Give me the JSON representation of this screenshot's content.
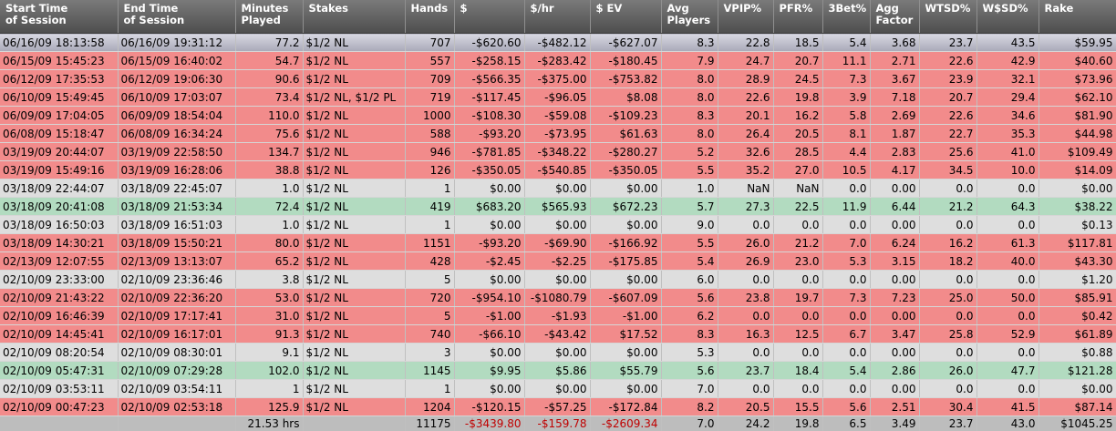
{
  "columns": [
    {
      "key": "start",
      "label": "Start Time\nof Session",
      "align": "left"
    },
    {
      "key": "end",
      "label": "End Time\nof Session",
      "align": "left"
    },
    {
      "key": "minutes",
      "label": "Minutes\nPlayed",
      "align": "right"
    },
    {
      "key": "stakes",
      "label": "Stakes",
      "align": "left"
    },
    {
      "key": "hands",
      "label": "Hands",
      "align": "right"
    },
    {
      "key": "dollars",
      "label": "$",
      "align": "right"
    },
    {
      "key": "per_hr",
      "label": "$/hr",
      "align": "right"
    },
    {
      "key": "ev",
      "label": "$ EV",
      "align": "right"
    },
    {
      "key": "avg_players",
      "label": "Avg\nPlayers",
      "align": "right"
    },
    {
      "key": "vpip",
      "label": "VPIP%",
      "align": "right"
    },
    {
      "key": "pfr",
      "label": "PFR%",
      "align": "right"
    },
    {
      "key": "threebet",
      "label": "3Bet%",
      "align": "right"
    },
    {
      "key": "agg",
      "label": "Agg\nFactor",
      "align": "right"
    },
    {
      "key": "wtsd",
      "label": "WTSD%",
      "align": "right"
    },
    {
      "key": "wsd",
      "label": "W$SD%",
      "align": "right"
    },
    {
      "key": "rake",
      "label": "Rake",
      "align": "right"
    }
  ],
  "row_colors": {
    "loss": "#f28b8b",
    "win": "#b2dbc0",
    "neutral": "#dedede"
  },
  "rows": [
    {
      "result": "selected",
      "cells": [
        "06/16/09 18:13:58",
        "06/16/09 19:31:12",
        "77.2",
        "$1/2 NL",
        "707",
        "-$620.60",
        "-$482.12",
        "-$627.07",
        "8.3",
        "22.8",
        "18.5",
        "5.4",
        "3.68",
        "23.7",
        "43.5",
        "$59.95"
      ]
    },
    {
      "result": "loss",
      "cells": [
        "06/15/09 15:45:23",
        "06/15/09 16:40:02",
        "54.7",
        "$1/2 NL",
        "557",
        "-$258.15",
        "-$283.42",
        "-$180.45",
        "7.9",
        "24.7",
        "20.7",
        "11.1",
        "2.71",
        "22.6",
        "42.9",
        "$40.60"
      ]
    },
    {
      "result": "loss",
      "cells": [
        "06/12/09 17:35:53",
        "06/12/09 19:06:30",
        "90.6",
        "$1/2 NL",
        "709",
        "-$566.35",
        "-$375.00",
        "-$753.82",
        "8.0",
        "28.9",
        "24.5",
        "7.3",
        "3.67",
        "23.9",
        "32.1",
        "$73.96"
      ]
    },
    {
      "result": "loss",
      "cells": [
        "06/10/09 15:49:45",
        "06/10/09 17:03:07",
        "73.4",
        "$1/2 NL, $1/2 PL",
        "719",
        "-$117.45",
        "-$96.05",
        "$8.08",
        "8.0",
        "22.6",
        "19.8",
        "3.9",
        "7.18",
        "20.7",
        "29.4",
        "$62.10"
      ]
    },
    {
      "result": "loss",
      "cells": [
        "06/09/09 17:04:05",
        "06/09/09 18:54:04",
        "110.0",
        "$1/2 NL",
        "1000",
        "-$108.30",
        "-$59.08",
        "-$109.23",
        "8.3",
        "20.1",
        "16.2",
        "5.8",
        "2.69",
        "22.6",
        "34.6",
        "$81.90"
      ]
    },
    {
      "result": "loss",
      "cells": [
        "06/08/09 15:18:47",
        "06/08/09 16:34:24",
        "75.6",
        "$1/2 NL",
        "588",
        "-$93.20",
        "-$73.95",
        "$61.63",
        "8.0",
        "26.4",
        "20.5",
        "8.1",
        "1.87",
        "22.7",
        "35.3",
        "$44.98"
      ]
    },
    {
      "result": "loss",
      "cells": [
        "03/19/09 20:44:07",
        "03/19/09 22:58:50",
        "134.7",
        "$1/2 NL",
        "946",
        "-$781.85",
        "-$348.22",
        "-$280.27",
        "5.2",
        "32.6",
        "28.5",
        "4.4",
        "2.83",
        "25.6",
        "41.0",
        "$109.49"
      ]
    },
    {
      "result": "loss",
      "cells": [
        "03/19/09 15:49:16",
        "03/19/09 16:28:06",
        "38.8",
        "$1/2 NL",
        "126",
        "-$350.05",
        "-$540.85",
        "-$350.05",
        "5.5",
        "35.2",
        "27.0",
        "10.5",
        "4.17",
        "34.5",
        "10.0",
        "$14.09"
      ]
    },
    {
      "result": "neutral",
      "cells": [
        "03/18/09 22:44:07",
        "03/18/09 22:45:07",
        "1.0",
        "$1/2 NL",
        "1",
        "$0.00",
        "$0.00",
        "$0.00",
        "1.0",
        "NaN",
        "NaN",
        "0.0",
        "0.00",
        "0.0",
        "0.0",
        "$0.00"
      ]
    },
    {
      "result": "win",
      "cells": [
        "03/18/09 20:41:08",
        "03/18/09 21:53:34",
        "72.4",
        "$1/2 NL",
        "419",
        "$683.20",
        "$565.93",
        "$672.23",
        "5.7",
        "27.3",
        "22.5",
        "11.9",
        "6.44",
        "21.2",
        "64.3",
        "$38.22"
      ]
    },
    {
      "result": "neutral",
      "cells": [
        "03/18/09 16:50:03",
        "03/18/09 16:51:03",
        "1.0",
        "$1/2 NL",
        "1",
        "$0.00",
        "$0.00",
        "$0.00",
        "9.0",
        "0.0",
        "0.0",
        "0.0",
        "0.00",
        "0.0",
        "0.0",
        "$0.13"
      ]
    },
    {
      "result": "loss",
      "cells": [
        "03/18/09 14:30:21",
        "03/18/09 15:50:21",
        "80.0",
        "$1/2 NL",
        "1151",
        "-$93.20",
        "-$69.90",
        "-$166.92",
        "5.5",
        "26.0",
        "21.2",
        "7.0",
        "6.24",
        "16.2",
        "61.3",
        "$117.81"
      ]
    },
    {
      "result": "loss",
      "cells": [
        "02/13/09 12:07:55",
        "02/13/09 13:13:07",
        "65.2",
        "$1/2 NL",
        "428",
        "-$2.45",
        "-$2.25",
        "-$175.85",
        "5.4",
        "26.9",
        "23.0",
        "5.3",
        "3.15",
        "18.2",
        "40.0",
        "$43.30"
      ]
    },
    {
      "result": "neutral",
      "cells": [
        "02/10/09 23:33:00",
        "02/10/09 23:36:46",
        "3.8",
        "$1/2 NL",
        "5",
        "$0.00",
        "$0.00",
        "$0.00",
        "6.0",
        "0.0",
        "0.0",
        "0.0",
        "0.00",
        "0.0",
        "0.0",
        "$1.20"
      ]
    },
    {
      "result": "loss",
      "cells": [
        "02/10/09 21:43:22",
        "02/10/09 22:36:20",
        "53.0",
        "$1/2 NL",
        "720",
        "-$954.10",
        "-$1080.79",
        "-$607.09",
        "5.6",
        "23.8",
        "19.7",
        "7.3",
        "7.23",
        "25.0",
        "50.0",
        "$85.91"
      ]
    },
    {
      "result": "loss",
      "cells": [
        "02/10/09 16:46:39",
        "02/10/09 17:17:41",
        "31.0",
        "$1/2 NL",
        "5",
        "-$1.00",
        "-$1.93",
        "-$1.00",
        "6.2",
        "0.0",
        "0.0",
        "0.0",
        "0.00",
        "0.0",
        "0.0",
        "$0.42"
      ]
    },
    {
      "result": "loss",
      "cells": [
        "02/10/09 14:45:41",
        "02/10/09 16:17:01",
        "91.3",
        "$1/2 NL",
        "740",
        "-$66.10",
        "-$43.42",
        "$17.52",
        "8.3",
        "16.3",
        "12.5",
        "6.7",
        "3.47",
        "25.8",
        "52.9",
        "$61.89"
      ]
    },
    {
      "result": "neutral",
      "cells": [
        "02/10/09 08:20:54",
        "02/10/09 08:30:01",
        "9.1",
        "$1/2 NL",
        "3",
        "$0.00",
        "$0.00",
        "$0.00",
        "5.3",
        "0.0",
        "0.0",
        "0.0",
        "0.00",
        "0.0",
        "0.0",
        "$0.88"
      ]
    },
    {
      "result": "win",
      "cells": [
        "02/10/09 05:47:31",
        "02/10/09 07:29:28",
        "102.0",
        "$1/2 NL",
        "1145",
        "$9.95",
        "$5.86",
        "$55.79",
        "5.6",
        "23.7",
        "18.4",
        "5.4",
        "2.86",
        "26.0",
        "47.7",
        "$121.28"
      ]
    },
    {
      "result": "neutral",
      "cells": [
        "02/10/09 03:53:11",
        "02/10/09 03:54:11",
        "1",
        "$1/2 NL",
        "1",
        "$0.00",
        "$0.00",
        "$0.00",
        "7.0",
        "0.0",
        "0.0",
        "0.0",
        "0.00",
        "0.0",
        "0.0",
        "$0.00"
      ]
    },
    {
      "result": "loss",
      "cells": [
        "02/10/09 00:47:23",
        "02/10/09 02:53:18",
        "125.9",
        "$1/2 NL",
        "1204",
        "-$120.15",
        "-$57.25",
        "-$172.84",
        "8.2",
        "20.5",
        "15.5",
        "5.6",
        "2.51",
        "30.4",
        "41.5",
        "$87.14"
      ]
    }
  ],
  "totals": [
    "",
    "",
    "21.53 hrs",
    "",
    "11175",
    "-$3439.80",
    "-$159.78",
    "-$2609.34",
    "7.0",
    "24.2",
    "19.8",
    "6.5",
    "3.49",
    "23.7",
    "43.0",
    "$1045.25"
  ],
  "totals_negative_color": "#c00000"
}
